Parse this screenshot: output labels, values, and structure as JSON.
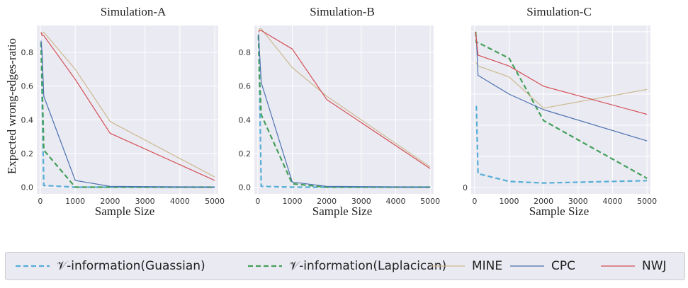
{
  "chart_data": [
    {
      "type": "line",
      "title": "Simulation-A",
      "xlabel": "Sample Size",
      "ylabel": "Expected wrong-edges-ratio",
      "xlim": [
        -100,
        5100
      ],
      "ylim": [
        -0.04,
        0.96
      ],
      "xticks": [
        "0",
        "1000",
        "2000",
        "3000",
        "4000",
        "5000"
      ],
      "yticks": [
        "0.0",
        "0.2",
        "0.4",
        "0.6",
        "0.8"
      ],
      "grid": true,
      "series": [
        {
          "name": "V-information(Guassian)",
          "x": [
            20,
            50,
            100,
            1000,
            2000,
            5000
          ],
          "y": [
            0.86,
            0.55,
            0.01,
            0.0,
            0.0,
            0.0
          ]
        },
        {
          "name": "V-information(Laplacican)",
          "x": [
            20,
            50,
            100,
            1000,
            2000,
            5000
          ],
          "y": [
            0.86,
            0.62,
            0.22,
            0.0,
            0.0,
            0.0
          ]
        },
        {
          "name": "MINE",
          "x": [
            20,
            50,
            100,
            1000,
            2000,
            5000
          ],
          "y": [
            0.91,
            0.91,
            0.92,
            0.7,
            0.39,
            0.06
          ]
        },
        {
          "name": "CPC",
          "x": [
            20,
            50,
            100,
            1000,
            2000,
            5000
          ],
          "y": [
            0.87,
            0.8,
            0.54,
            0.04,
            0.005,
            0.0
          ]
        },
        {
          "name": "NWJ",
          "x": [
            20,
            50,
            100,
            1000,
            2000,
            5000
          ],
          "y": [
            0.92,
            0.9,
            0.9,
            0.64,
            0.32,
            0.04
          ]
        }
      ]
    },
    {
      "type": "line",
      "title": "Simulation-B",
      "xlabel": "Sample Size",
      "ylabel": "",
      "xlim": [
        -100,
        5100
      ],
      "ylim": [
        -0.04,
        0.96
      ],
      "xticks": [
        "0",
        "1000",
        "2000",
        "3000",
        "4000",
        "5000"
      ],
      "yticks": [
        "0.0",
        "0.2",
        "0.4",
        "0.6",
        "0.8"
      ],
      "grid": true,
      "series": [
        {
          "name": "V-information(Guassian)",
          "x": [
            20,
            50,
            100,
            1000,
            2000,
            5000
          ],
          "y": [
            0.9,
            0.6,
            0.005,
            0.0,
            0.0,
            0.0
          ]
        },
        {
          "name": "V-information(Laplacican)",
          "x": [
            20,
            50,
            100,
            1000,
            2000,
            5000
          ],
          "y": [
            0.9,
            0.65,
            0.43,
            0.02,
            0.0,
            0.0
          ]
        },
        {
          "name": "MINE",
          "x": [
            20,
            50,
            100,
            1000,
            2000,
            5000
          ],
          "y": [
            0.93,
            0.94,
            0.94,
            0.71,
            0.54,
            0.12
          ]
        },
        {
          "name": "CPC",
          "x": [
            20,
            50,
            100,
            1000,
            2000,
            5000
          ],
          "y": [
            0.91,
            0.8,
            0.62,
            0.03,
            0.005,
            0.0
          ]
        },
        {
          "name": "NWJ",
          "x": [
            20,
            50,
            100,
            1000,
            2000,
            5000
          ],
          "y": [
            0.92,
            0.93,
            0.93,
            0.82,
            0.52,
            0.11
          ]
        }
      ]
    },
    {
      "type": "line",
      "title": "Simulation-C",
      "xlabel": "Sample Size",
      "ylabel": "",
      "xlim": [
        -100,
        5100
      ],
      "ylim": [
        -0.04,
        1.04
      ],
      "xticks": [
        "0",
        "1000",
        "2000",
        "3000",
        "4000",
        "5000"
      ],
      "yticks": [
        "0"
      ],
      "grid": true,
      "series": [
        {
          "name": "V-information(Guassian)",
          "x": [
            30,
            50,
            100,
            1000,
            2000,
            5000
          ],
          "y": [
            0.52,
            0.52,
            0.09,
            0.04,
            0.03,
            0.045
          ]
        },
        {
          "name": "V-information(Laplacican)",
          "x": [
            30,
            50,
            100,
            1000,
            2000,
            5000
          ],
          "y": [
            1.0,
            0.93,
            0.93,
            0.83,
            0.43,
            0.06
          ]
        },
        {
          "name": "MINE",
          "x": [
            30,
            50,
            100,
            1000,
            2000,
            5000
          ],
          "y": [
            0.8,
            0.8,
            0.78,
            0.71,
            0.51,
            0.63
          ]
        },
        {
          "name": "CPC",
          "x": [
            30,
            50,
            100,
            1000,
            2000,
            5000
          ],
          "y": [
            0.98,
            0.96,
            0.72,
            0.6,
            0.5,
            0.3
          ]
        },
        {
          "name": "NWJ",
          "x": [
            30,
            50,
            100,
            1000,
            2000,
            5000
          ],
          "y": [
            1.0,
            0.95,
            0.85,
            0.78,
            0.65,
            0.47
          ]
        }
      ]
    }
  ],
  "legend": {
    "items": [
      {
        "label": "𝒱-information(Guassian)",
        "color": "#56aed6",
        "dashed": true
      },
      {
        "label": "𝒱-information(Laplacican)",
        "color": "#44a05a",
        "dashed": true
      },
      {
        "label": "MINE",
        "color": "#ccb98f",
        "dashed": false
      },
      {
        "label": "CPC",
        "color": "#4c72b0",
        "dashed": false
      },
      {
        "label": "NWJ",
        "color": "#d44e56",
        "dashed": false
      }
    ]
  }
}
